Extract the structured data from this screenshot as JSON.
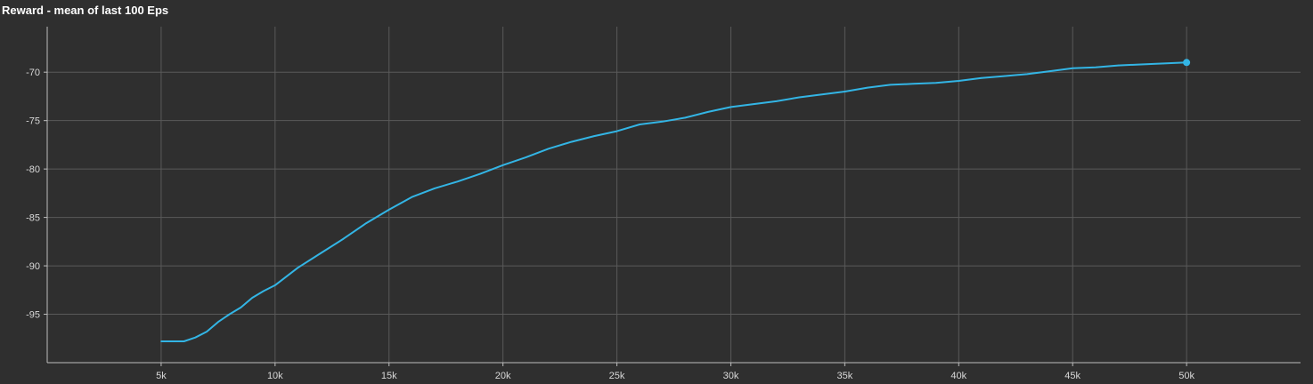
{
  "chart_data": {
    "type": "line",
    "title": "Reward - mean of last 100 Eps",
    "xlabel": "",
    "ylabel": "",
    "xlim": [
      0,
      55000
    ],
    "ylim": [
      -100,
      -65.3
    ],
    "grid": true,
    "colors": {
      "background": "#2f2f2f",
      "grid": "#5a5a5a",
      "axis": "#bdbdbd",
      "line": "#33b5e5"
    },
    "x_ticks": [
      {
        "value": 5000,
        "label": "5k"
      },
      {
        "value": 10000,
        "label": "10k"
      },
      {
        "value": 15000,
        "label": "15k"
      },
      {
        "value": 20000,
        "label": "20k"
      },
      {
        "value": 25000,
        "label": "25k"
      },
      {
        "value": 30000,
        "label": "30k"
      },
      {
        "value": 35000,
        "label": "35k"
      },
      {
        "value": 40000,
        "label": "40k"
      },
      {
        "value": 45000,
        "label": "45k"
      },
      {
        "value": 50000,
        "label": "50k"
      }
    ],
    "y_ticks": [
      {
        "value": -70,
        "label": "-70"
      },
      {
        "value": -75,
        "label": "-75"
      },
      {
        "value": -80,
        "label": "-80"
      },
      {
        "value": -85,
        "label": "-85"
      },
      {
        "value": -90,
        "label": "-90"
      },
      {
        "value": -95,
        "label": "-95"
      }
    ],
    "series": [
      {
        "x": [
          5000,
          6000,
          6500,
          7000,
          7500,
          8000,
          8500,
          9000,
          9500,
          10000,
          11000,
          12000,
          13000,
          14000,
          15000,
          16000,
          17000,
          18000,
          19000,
          20000,
          21000,
          22000,
          23000,
          24000,
          25000,
          26000,
          27000,
          28000,
          29000,
          30000,
          31000,
          32000,
          33000,
          34000,
          35000,
          36000,
          37000,
          38000,
          39000,
          40000,
          41000,
          42000,
          43000,
          44000,
          45000,
          46000,
          47000,
          48000,
          49000,
          50000
        ],
        "values": [
          -97.8,
          -97.8,
          -97.4,
          -96.8,
          -95.8,
          -95.0,
          -94.3,
          -93.3,
          -92.6,
          -92.0,
          -90.2,
          -88.7,
          -87.2,
          -85.6,
          -84.2,
          -82.9,
          -82.0,
          -81.3,
          -80.5,
          -79.6,
          -78.8,
          -77.9,
          -77.2,
          -76.6,
          -76.1,
          -75.4,
          -75.1,
          -74.7,
          -74.1,
          -73.6,
          -73.3,
          -73.0,
          -72.6,
          -72.3,
          -72.0,
          -71.6,
          -71.3,
          -71.2,
          -71.1,
          -70.9,
          -70.6,
          -70.4,
          -70.2,
          -69.9,
          -69.6,
          -69.5,
          -69.3,
          -69.2,
          -69.1,
          -69.0
        ]
      }
    ]
  }
}
